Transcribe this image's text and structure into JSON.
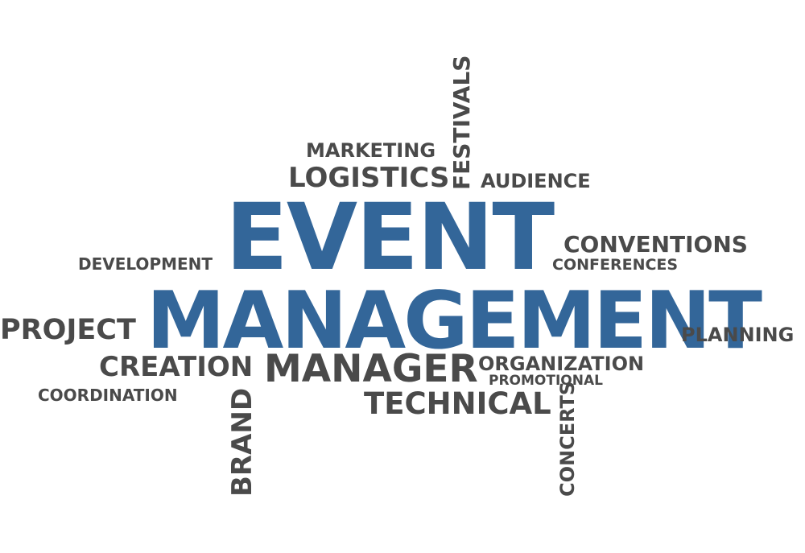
{
  "cloud": {
    "main_color": "#336699",
    "text_color": "#4a4a4a",
    "background": "#ffffff",
    "words": {
      "event": "EVENT",
      "management": "MANAGEMENT",
      "marketing": "MARKETING",
      "logistics": "LOGISTICS",
      "festivals": "FESTIVALS",
      "audience": "AUDIENCE",
      "conventions": "CONVENTIONS",
      "conferences": "CONFERENCES",
      "development": "DEVELOPMENT",
      "project": "PROJECT",
      "planning": "PLANNING",
      "creation": "CREATION",
      "manager": "MANAGER",
      "organization": "ORGANIZATION",
      "promotional": "PROMOTIONAL",
      "coordination": "COORDINATION",
      "technical": "TECHNICAL",
      "brand": "BRAND",
      "concerts": "CONCERTS"
    }
  }
}
